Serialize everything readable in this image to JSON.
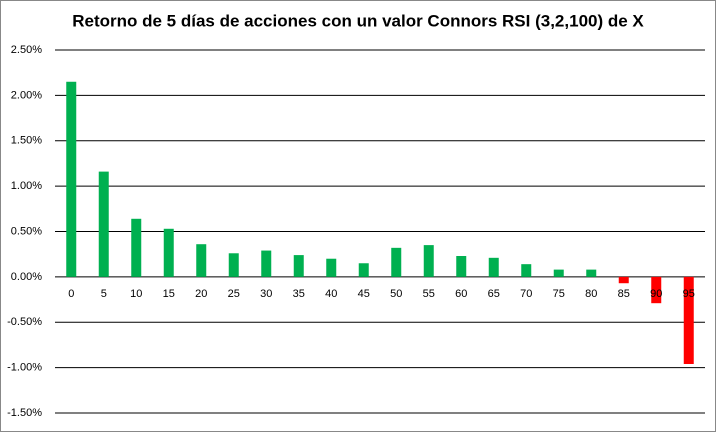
{
  "chart_data": {
    "type": "bar",
    "title": "Retorno de 5 días de acciones con un valor Connors RSI (3,2,100) de X",
    "categories": [
      "0",
      "5",
      "10",
      "15",
      "20",
      "25",
      "30",
      "35",
      "40",
      "45",
      "50",
      "55",
      "60",
      "65",
      "70",
      "75",
      "80",
      "85",
      "90",
      "95"
    ],
    "values": [
      2.15,
      1.16,
      0.64,
      0.53,
      0.36,
      0.26,
      0.29,
      0.24,
      0.2,
      0.15,
      0.32,
      0.35,
      0.23,
      0.21,
      0.14,
      0.08,
      0.08,
      -0.07,
      -0.29,
      -0.96
    ],
    "positive_color": "#00b050",
    "negative_color": "#ff0000",
    "ylim": [
      -1.5,
      2.5
    ],
    "yticks": [
      {
        "value": -1.5,
        "label": "-1.50%"
      },
      {
        "value": -1.0,
        "label": "-1.00%"
      },
      {
        "value": -0.5,
        "label": "-0.50%"
      },
      {
        "value": 0,
        "label": "0.00%"
      },
      {
        "value": 0.5,
        "label": "0.50%"
      },
      {
        "value": 1.0,
        "label": "1.00%"
      },
      {
        "value": 1.5,
        "label": "1.50%"
      },
      {
        "value": 2.0,
        "label": "2.00%"
      },
      {
        "value": 2.5,
        "label": "2.50%"
      }
    ],
    "grid": true
  }
}
